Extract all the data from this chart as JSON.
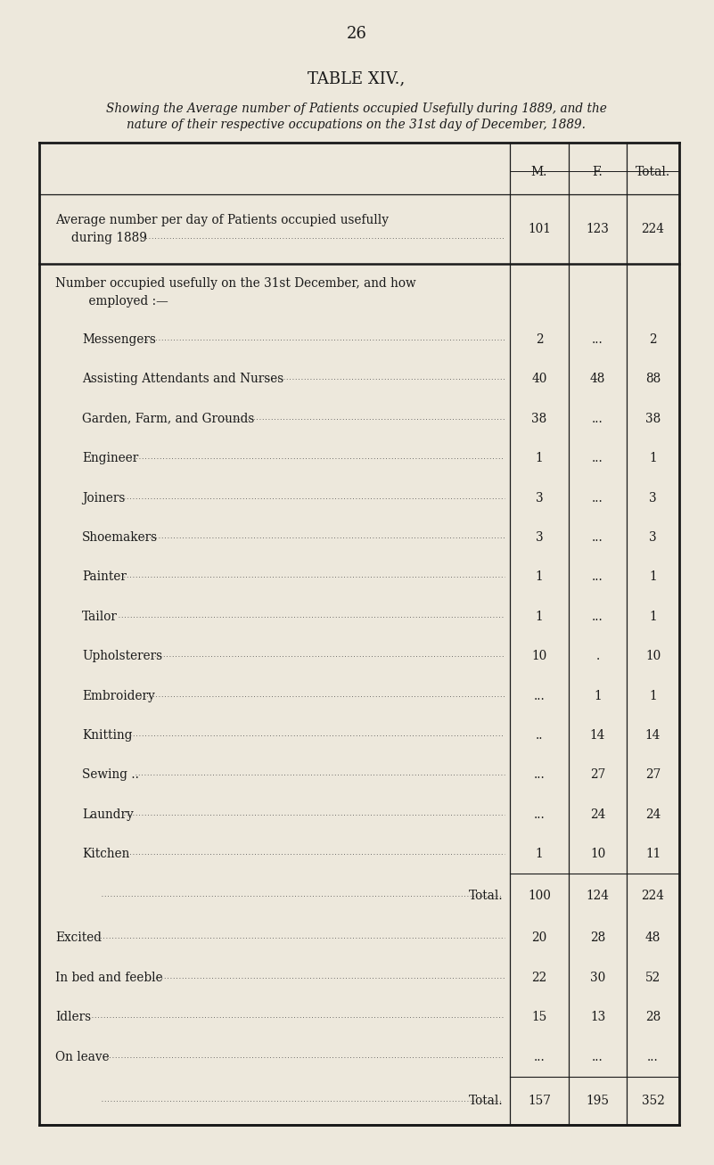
{
  "page_number": "26",
  "title": "TABLE XIV.,",
  "subtitle_line1": "Showing the Average number of Patients occupied Usefully during 1889, and the",
  "subtitle_line2": "nature of their respective occupations on the 31st day of December, 1889.",
  "bg_color": "#ede8dc",
  "text_color": "#1a1a1a",
  "col_headers": [
    "M.",
    "F.",
    "Total."
  ],
  "rows": [
    {
      "type": "header_spacer",
      "label": "",
      "m": "",
      "f": "",
      "total": "",
      "indent": 0
    },
    {
      "type": "avg_row",
      "label": "Average number per day of Patients occupied usefully",
      "label2": "during 1889",
      "dots": true,
      "m": "101",
      "f": "123",
      "total": "224",
      "indent": 0
    },
    {
      "type": "thick_sep"
    },
    {
      "type": "section_header",
      "label": "Number occupied usefully on the 31st December, and how",
      "label2": "    employed :—",
      "m": "",
      "f": "",
      "total": "",
      "indent": 0
    },
    {
      "type": "data_row",
      "label": "Messengers",
      "dots": true,
      "m": "2",
      "f": "...",
      "total": "2",
      "indent": 1
    },
    {
      "type": "data_row",
      "label": "Assisting Attendants and Nurses",
      "dots": true,
      "m": "40",
      "f": "48",
      "total": "88",
      "indent": 1
    },
    {
      "type": "data_row",
      "label": "Garden, Farm, and Grounds",
      "dots": true,
      "m": "38",
      "f": "...",
      "total": "38",
      "indent": 1
    },
    {
      "type": "data_row",
      "label": "Engineer",
      "dots": true,
      "m": "1",
      "f": "...",
      "total": "1",
      "indent": 1
    },
    {
      "type": "data_row",
      "label": "Joiners",
      "dots": true,
      "m": "3",
      "f": "...",
      "total": "3",
      "indent": 1
    },
    {
      "type": "data_row",
      "label": "Shoemakers",
      "dots": true,
      "m": "3",
      "f": "...",
      "total": "3",
      "indent": 1
    },
    {
      "type": "data_row",
      "label": "Painter",
      "dots": true,
      "m": "1",
      "f": "...",
      "total": "1",
      "indent": 1
    },
    {
      "type": "data_row",
      "label": "Tailor",
      "dots": true,
      "m": "1",
      "f": "...",
      "total": "1",
      "indent": 1
    },
    {
      "type": "data_row",
      "label": "Upholsterers",
      "dots": true,
      "m": "10",
      "f": ".",
      "total": "10",
      "indent": 1
    },
    {
      "type": "data_row",
      "label": "Embroidery",
      "dots": true,
      "m": "...",
      "f": "1",
      "total": "1",
      "indent": 1
    },
    {
      "type": "data_row",
      "label": "Knitting",
      "dots": true,
      "m": "..",
      "f": "14",
      "total": "14",
      "indent": 1
    },
    {
      "type": "data_row",
      "label": "Sewing ..",
      "dots": true,
      "m": "...",
      "f": "27",
      "total": "27",
      "indent": 1
    },
    {
      "type": "data_row",
      "label": "Laundry",
      "dots": true,
      "m": "...",
      "f": "24",
      "total": "24",
      "indent": 1
    },
    {
      "type": "data_row",
      "label": "Kitchen",
      "dots": true,
      "m": "1",
      "f": "10",
      "total": "11",
      "indent": 1
    },
    {
      "type": "thin_sep"
    },
    {
      "type": "subtotal_row",
      "label": "Total",
      "dots": true,
      "m": "100",
      "f": "124",
      "total": "224",
      "indent": 2
    },
    {
      "type": "data_row",
      "label": "Excited",
      "dots": true,
      "m": "20",
      "f": "28",
      "total": "48",
      "indent": 0
    },
    {
      "type": "data_row",
      "label": "In bed and feeble",
      "dots": true,
      "m": "22",
      "f": "30",
      "total": "52",
      "indent": 0
    },
    {
      "type": "data_row",
      "label": "Idlers",
      "dots": true,
      "m": "15",
      "f": "13",
      "total": "28",
      "indent": 0
    },
    {
      "type": "data_row",
      "label": "On leave",
      "dots": true,
      "m": "...",
      "f": "...",
      "total": "...",
      "indent": 0
    },
    {
      "type": "thin_sep"
    },
    {
      "type": "total_row",
      "label": "Total",
      "dots": true,
      "m": "157",
      "f": "195",
      "total": "352",
      "indent": 2
    }
  ]
}
